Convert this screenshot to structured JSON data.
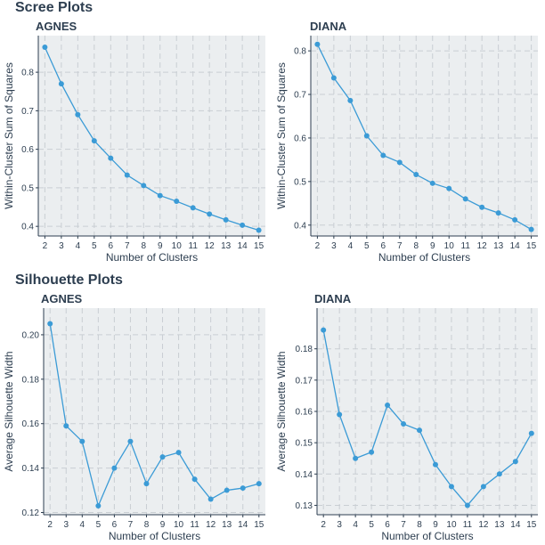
{
  "sections": [
    {
      "title": "Scree Plots"
    },
    {
      "title": "Silhouette Plots"
    }
  ],
  "colors": {
    "line": "#3b9bd6",
    "panel_bg": "#ebeef0",
    "grid": "#c9ced3",
    "axis": "#2d3e50"
  },
  "chart_data": [
    {
      "type": "line",
      "title": "AGNES",
      "xlabel": "Number of Clusters",
      "ylabel": "Within-Cluster Sum of Squares",
      "x": [
        2,
        3,
        4,
        5,
        6,
        7,
        8,
        9,
        10,
        11,
        12,
        13,
        14,
        15
      ],
      "values": [
        0.865,
        0.77,
        0.69,
        0.622,
        0.577,
        0.533,
        0.506,
        0.48,
        0.465,
        0.448,
        0.432,
        0.417,
        0.403,
        0.39
      ],
      "xlim": [
        1.6,
        15.4
      ],
      "ylim": [
        0.375,
        0.895
      ],
      "yticks": [
        0.4,
        0.5,
        0.6,
        0.7,
        0.8
      ],
      "ytick_labels": [
        "0.4",
        "0.5",
        "0.6",
        "0.7",
        "0.8"
      ],
      "grid": true
    },
    {
      "type": "line",
      "title": "DIANA",
      "xlabel": "Number of Clusters",
      "ylabel": "Within-Cluster Sum of Squares",
      "x": [
        2,
        3,
        4,
        5,
        6,
        7,
        8,
        9,
        10,
        11,
        12,
        13,
        14,
        15
      ],
      "values": [
        0.815,
        0.738,
        0.686,
        0.605,
        0.56,
        0.544,
        0.516,
        0.496,
        0.484,
        0.46,
        0.441,
        0.428,
        0.412,
        0.39
      ],
      "xlim": [
        1.6,
        15.4
      ],
      "ylim": [
        0.375,
        0.835
      ],
      "yticks": [
        0.4,
        0.5,
        0.6,
        0.7,
        0.8
      ],
      "ytick_labels": [
        "0.4",
        "0.5",
        "0.6",
        "0.7",
        "0.8"
      ],
      "grid": true
    },
    {
      "type": "line",
      "title": "AGNES",
      "xlabel": "Number of Clusters",
      "ylabel": "Average Silhouette Width",
      "x": [
        2,
        3,
        4,
        5,
        6,
        7,
        8,
        9,
        10,
        11,
        12,
        13,
        14,
        15
      ],
      "values": [
        0.205,
        0.159,
        0.152,
        0.123,
        0.14,
        0.152,
        0.133,
        0.145,
        0.147,
        0.135,
        0.126,
        0.13,
        0.131,
        0.133
      ],
      "xlim": [
        1.6,
        15.4
      ],
      "ylim": [
        0.119,
        0.212
      ],
      "yticks": [
        0.12,
        0.14,
        0.16,
        0.18,
        0.2
      ],
      "ytick_labels": [
        "0.12",
        "0.14",
        "0.16",
        "0.18",
        "0.20"
      ],
      "grid": true
    },
    {
      "type": "line",
      "title": "DIANA",
      "xlabel": "Number of Clusters",
      "ylabel": "Average Silhouette Width",
      "x": [
        2,
        3,
        4,
        5,
        6,
        7,
        8,
        9,
        10,
        11,
        12,
        13,
        14,
        15
      ],
      "values": [
        0.186,
        0.159,
        0.145,
        0.147,
        0.162,
        0.156,
        0.154,
        0.143,
        0.136,
        0.13,
        0.136,
        0.14,
        0.144,
        0.153
      ],
      "xlim": [
        1.6,
        15.4
      ],
      "ylim": [
        0.127,
        0.193
      ],
      "yticks": [
        0.13,
        0.14,
        0.15,
        0.16,
        0.17,
        0.18
      ],
      "ytick_labels": [
        "0.13",
        "0.14",
        "0.15",
        "0.16",
        "0.17",
        "0.18"
      ],
      "grid": true
    }
  ]
}
